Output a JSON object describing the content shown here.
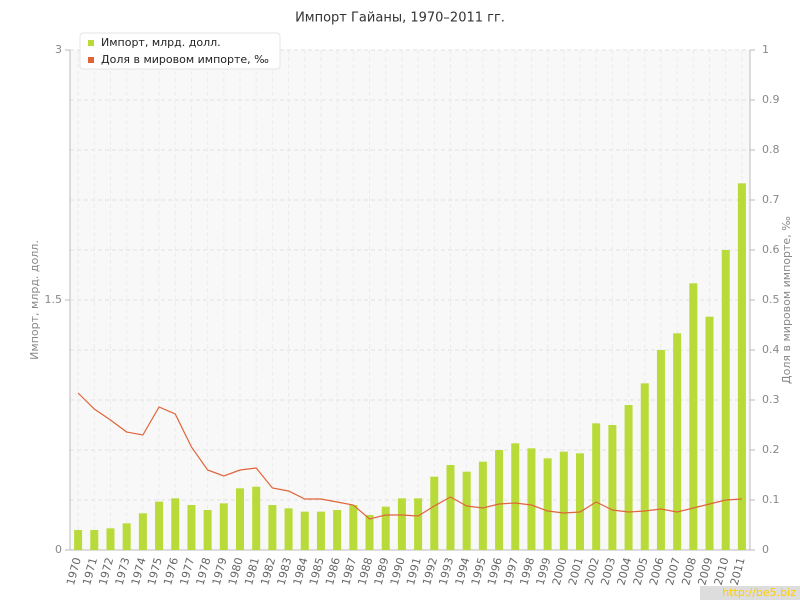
{
  "chart_data": {
    "type": "bar-line",
    "title": "Импорт Гайаны, 1970–2011 гг.",
    "y_label": "Импорт, млрд. долл.",
    "y2_label": "Доля в мировом импорте, ‰",
    "watermark": "http://be5.biz",
    "categories": [
      "1970",
      "1971",
      "1972",
      "1973",
      "1974",
      "1975",
      "1976",
      "1977",
      "1978",
      "1979",
      "1980",
      "1981",
      "1982",
      "1983",
      "1984",
      "1985",
      "1986",
      "1987",
      "1988",
      "1989",
      "1990",
      "1991",
      "1992",
      "1993",
      "1994",
      "1995",
      "1996",
      "1997",
      "1998",
      "1999",
      "2000",
      "2001",
      "2002",
      "2003",
      "2004",
      "2005",
      "2006",
      "2007",
      "2008",
      "2009",
      "2010",
      "2011"
    ],
    "series": [
      {
        "name": "Импорт, млрд. долл.",
        "color": "#b8db3a",
        "kind": "bar",
        "values": [
          0.12,
          0.12,
          0.13,
          0.16,
          0.22,
          0.29,
          0.31,
          0.27,
          0.24,
          0.28,
          0.37,
          0.38,
          0.27,
          0.25,
          0.23,
          0.23,
          0.24,
          0.27,
          0.21,
          0.26,
          0.31,
          0.31,
          0.44,
          0.51,
          0.47,
          0.53,
          0.6,
          0.64,
          0.61,
          0.55,
          0.59,
          0.58,
          0.76,
          0.75,
          0.87,
          1.0,
          1.2,
          1.3,
          1.6,
          1.4,
          1.8,
          2.2
        ]
      },
      {
        "name": "Доля в мировом импорте, ‰",
        "color": "#e0643a",
        "kind": "line",
        "axis": "y2",
        "values": [
          0.314,
          0.282,
          0.26,
          0.236,
          0.23,
          0.286,
          0.272,
          0.206,
          0.16,
          0.148,
          0.16,
          0.164,
          0.124,
          0.118,
          0.102,
          0.102,
          0.096,
          0.09,
          0.062,
          0.07,
          0.07,
          0.068,
          0.088,
          0.106,
          0.088,
          0.084,
          0.092,
          0.094,
          0.09,
          0.078,
          0.074,
          0.076,
          0.096,
          0.08,
          0.076,
          0.078,
          0.082,
          0.076,
          0.084,
          0.092,
          0.1,
          0.102
        ]
      }
    ],
    "ylim": [
      0,
      3
    ],
    "yticks": [
      0,
      1.5,
      3
    ],
    "y2lim": [
      0,
      1
    ],
    "y2ticks": [
      0,
      0.1,
      0.2,
      0.3,
      0.4,
      0.5,
      0.6,
      0.7,
      0.8,
      0.9,
      1
    ],
    "grid": true
  }
}
